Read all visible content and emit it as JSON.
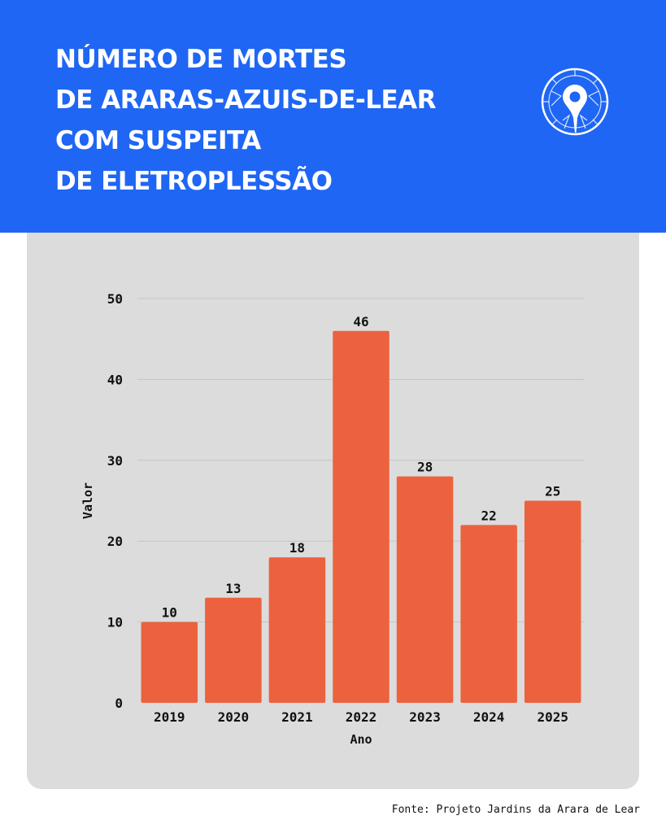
{
  "header": {
    "title_lines": [
      "NÚMERO DE MORTES",
      "DE ARARAS-AZUIS-DE-LEAR",
      "COM SUSPEITA",
      "DE ELETROPLESSÃO"
    ],
    "logo_icon": "map-pin-pattern-icon"
  },
  "chart_data": {
    "type": "bar",
    "categories": [
      "2019",
      "2020",
      "2021",
      "2022",
      "2023",
      "2024",
      "2025"
    ],
    "values": [
      10,
      13,
      18,
      46,
      28,
      22,
      25
    ],
    "title": "NÚMERO DE MORTES DE ARARAS-AZUIS-DE-LEAR COM SUSPEITA DE ELETROPLESSÃO",
    "xlabel": "Ano",
    "ylabel": "Valor",
    "ylim": [
      0,
      50
    ],
    "yticks": [
      0,
      10,
      20,
      30,
      40,
      50
    ],
    "grid": true,
    "bar_color": "#ec623f",
    "show_data_labels": true
  },
  "colors": {
    "header_bg": "#1f66f4",
    "panel_bg": "#dcdcdc",
    "grid": "#c4c4c4"
  },
  "footer": {
    "source": "Fonte: Projeto Jardins da Arara de Lear"
  }
}
